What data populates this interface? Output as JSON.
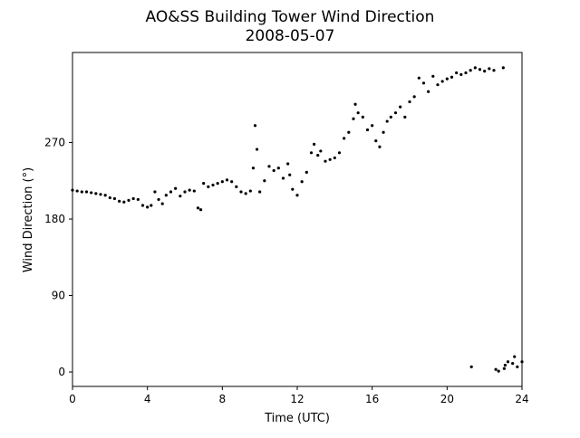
{
  "chart_data": {
    "type": "scatter",
    "title": "AO&SS Building Tower Wind Direction",
    "subtitle": "2008-05-07",
    "x_label": "Time (UTC)",
    "y_label": "Wind Direction (°)",
    "color": "#000000",
    "xlim": [
      0,
      24
    ],
    "xticks": [
      0,
      4,
      8,
      12,
      16,
      20,
      24
    ],
    "ylim": [
      -17,
      376
    ],
    "yticks": [
      0,
      90,
      180,
      270
    ],
    "x": [
      0,
      0.25,
      0.5,
      0.75,
      1,
      1.25,
      1.5,
      1.75,
      2,
      2.25,
      2.5,
      2.75,
      3,
      3.25,
      3.5,
      3.75,
      4,
      4.2,
      4.4,
      4.6,
      4.8,
      5,
      5.25,
      5.5,
      5.75,
      6,
      6.25,
      6.5,
      6.7,
      6.85,
      7,
      7.25,
      7.5,
      7.75,
      8,
      8.25,
      8.5,
      8.75,
      9,
      9.25,
      9.5,
      9.65,
      9.75,
      9.85,
      10,
      10.25,
      10.5,
      10.75,
      11,
      11.25,
      11.5,
      11.6,
      11.75,
      12,
      12.25,
      12.5,
      12.75,
      12.9,
      13.1,
      13.25,
      13.5,
      13.75,
      14,
      14.25,
      14.5,
      14.75,
      15,
      15.1,
      15.25,
      15.5,
      15.75,
      16,
      16.2,
      16.4,
      16.6,
      16.8,
      17,
      17.25,
      17.5,
      17.75,
      18,
      18.25,
      18.5,
      18.75,
      19,
      19.25,
      19.5,
      19.75,
      20,
      20.25,
      20.5,
      20.75,
      21,
      21.25,
      21.3,
      21.5,
      21.75,
      22,
      22.25,
      22.5,
      22.6,
      22.75,
      23,
      23.05,
      23.1,
      23.25,
      23.5,
      23.6,
      23.75,
      24
    ],
    "values": [
      214,
      213,
      212,
      212,
      211,
      210,
      209,
      208,
      205,
      204,
      201,
      200,
      202,
      204,
      203,
      196,
      194,
      196,
      212,
      203,
      198,
      208,
      212,
      216,
      207,
      212,
      214,
      213,
      193,
      191,
      222,
      218,
      220,
      222,
      224,
      226,
      224,
      218,
      212,
      210,
      213,
      240,
      290,
      262,
      212,
      225,
      242,
      237,
      240,
      228,
      245,
      232,
      215,
      208,
      224,
      235,
      258,
      268,
      255,
      260,
      248,
      250,
      252,
      258,
      275,
      282,
      298,
      315,
      305,
      300,
      285,
      290,
      272,
      265,
      282,
      295,
      300,
      305,
      312,
      300,
      318,
      324,
      346,
      340,
      330,
      348,
      338,
      342,
      345,
      347,
      352,
      350,
      352,
      355,
      6,
      358,
      356,
      354,
      357,
      355,
      3,
      1,
      358,
      4,
      8,
      12,
      10,
      18,
      6,
      12
    ]
  }
}
